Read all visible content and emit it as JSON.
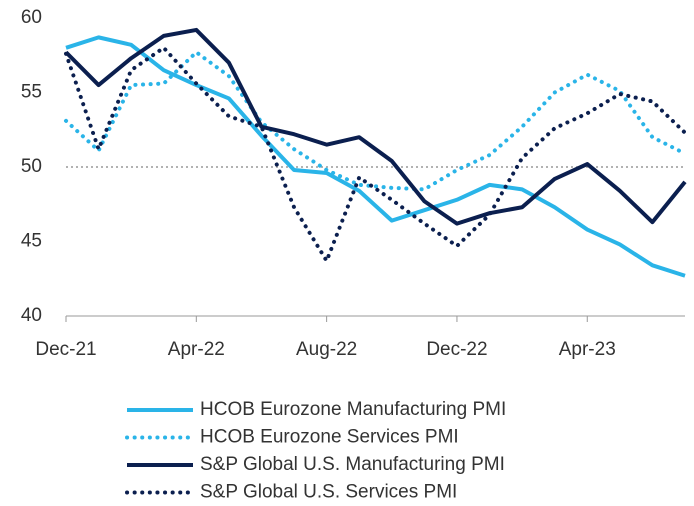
{
  "chart_data": {
    "type": "line",
    "categories": [
      "Dec-21",
      null,
      null,
      null,
      "Apr-22",
      null,
      null,
      null,
      "Aug-22",
      null,
      null,
      null,
      "Dec-22",
      null,
      null,
      null,
      "Apr-23",
      null,
      null,
      null
    ],
    "series": [
      {
        "name": "HCOB Eurozone Manufacturing PMI",
        "color": "#2ab4e8",
        "style": "solid",
        "values": [
          58.0,
          58.7,
          58.2,
          56.5,
          55.5,
          54.6,
          52.1,
          49.8,
          49.6,
          48.4,
          46.4,
          47.1,
          47.8,
          48.8,
          48.5,
          47.3,
          45.8,
          44.8,
          43.4,
          42.7
        ]
      },
      {
        "name": "HCOB Eurozone Services PMI",
        "color": "#2ab4e8",
        "style": "dotted",
        "values": [
          53.1,
          51.1,
          55.5,
          55.6,
          57.7,
          56.1,
          53.0,
          51.2,
          49.8,
          48.8,
          48.6,
          48.5,
          49.8,
          50.8,
          52.7,
          55.0,
          56.2,
          55.1,
          52.0,
          50.9
        ]
      },
      {
        "name": "S&P Global U.S. Manufacturing PMI",
        "color": "#0b1f4f",
        "style": "solid",
        "values": [
          57.7,
          55.5,
          57.3,
          58.8,
          59.2,
          57.0,
          52.7,
          52.2,
          51.5,
          52.0,
          50.4,
          47.7,
          46.2,
          46.9,
          47.3,
          49.2,
          50.2,
          48.4,
          46.3,
          49.0
        ]
      },
      {
        "name": "S&P Global U.S. Services PMI",
        "color": "#0b1f4f",
        "style": "dotted",
        "values": [
          57.6,
          51.2,
          56.5,
          58.0,
          55.6,
          53.4,
          52.7,
          47.3,
          43.7,
          49.3,
          47.8,
          46.2,
          44.7,
          46.8,
          50.6,
          52.6,
          53.6,
          54.9,
          54.4,
          52.3
        ]
      }
    ],
    "ylim": [
      40,
      60
    ],
    "yticks": [
      40,
      45,
      50,
      55,
      60
    ],
    "hline": 50,
    "legend": "bottom"
  }
}
